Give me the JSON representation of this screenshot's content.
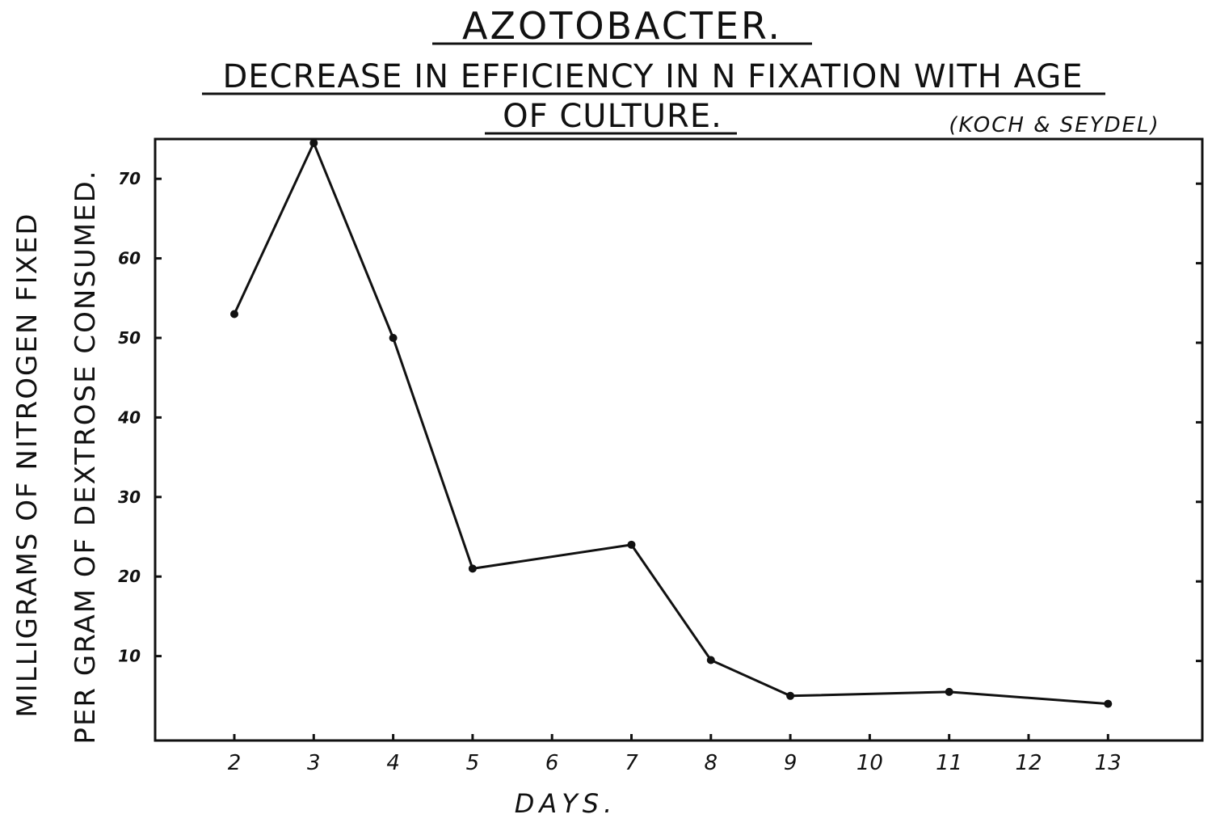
{
  "chart_data": {
    "type": "line",
    "title": "AZOTOBACTER.",
    "subtitle_line1": "DECREASE IN EFFICIENCY IN N FIXATION WITH AGE",
    "subtitle_line2": "OF CULTURE.",
    "source": "(KOCH & SEYDEL)",
    "xlabel": "DAYS.",
    "ylabel_line1": "MILLIGRAMS OF NITROGEN FIXED",
    "ylabel_line2": "PER GRAM OF DEXTROSE CONSUMED.",
    "x_ticks": [
      "2",
      "3",
      "4",
      "5",
      "6",
      "7",
      "8",
      "9",
      "10",
      "11",
      "12",
      "13"
    ],
    "y_ticks": [
      "10",
      "20",
      "30",
      "40",
      "50",
      "60",
      "70"
    ],
    "ylim": [
      0,
      75
    ],
    "xlim": [
      1,
      14
    ],
    "grid": false,
    "series": [
      {
        "x": [
          2,
          3,
          4,
          5,
          7,
          8,
          9,
          11,
          13
        ],
        "y": [
          53,
          74.5,
          50,
          21,
          24,
          9.5,
          5,
          5.5,
          4
        ]
      }
    ]
  }
}
